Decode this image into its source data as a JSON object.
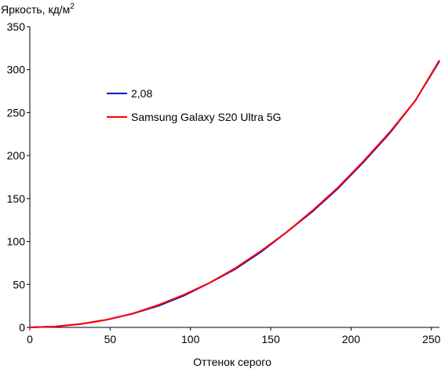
{
  "chart_data": {
    "type": "line",
    "ylabel": "Яркость, кд/м",
    "ylabel_sup": "2",
    "xlabel": "Оттенок серого",
    "xlim": [
      0,
      255
    ],
    "ylim": [
      0,
      350
    ],
    "x_ticks": [
      0,
      50,
      100,
      150,
      200,
      250
    ],
    "y_ticks": [
      0,
      50,
      100,
      150,
      200,
      250,
      300,
      350
    ],
    "grid": false,
    "legend_position": "upper-left",
    "series": [
      {
        "name": "2,08",
        "color": "#0000cc",
        "x": [
          0,
          16,
          32,
          48,
          64,
          80,
          96,
          112,
          128,
          144,
          160,
          176,
          192,
          208,
          224,
          240,
          255
        ],
        "y": [
          0,
          1,
          4,
          9,
          16,
          25,
          37,
          52,
          68,
          88,
          111,
          135,
          162,
          193,
          226,
          264,
          310
        ]
      },
      {
        "name": "Samsung Galaxy S20 Ultra 5G",
        "color": "#ff0000",
        "x": [
          0,
          16,
          32,
          48,
          64,
          80,
          96,
          112,
          128,
          144,
          160,
          176,
          192,
          208,
          224,
          240,
          255
        ],
        "y": [
          0,
          1,
          4,
          9,
          16,
          26,
          38,
          52,
          69,
          89,
          111,
          136,
          163,
          194,
          227,
          264,
          311
        ]
      }
    ]
  }
}
